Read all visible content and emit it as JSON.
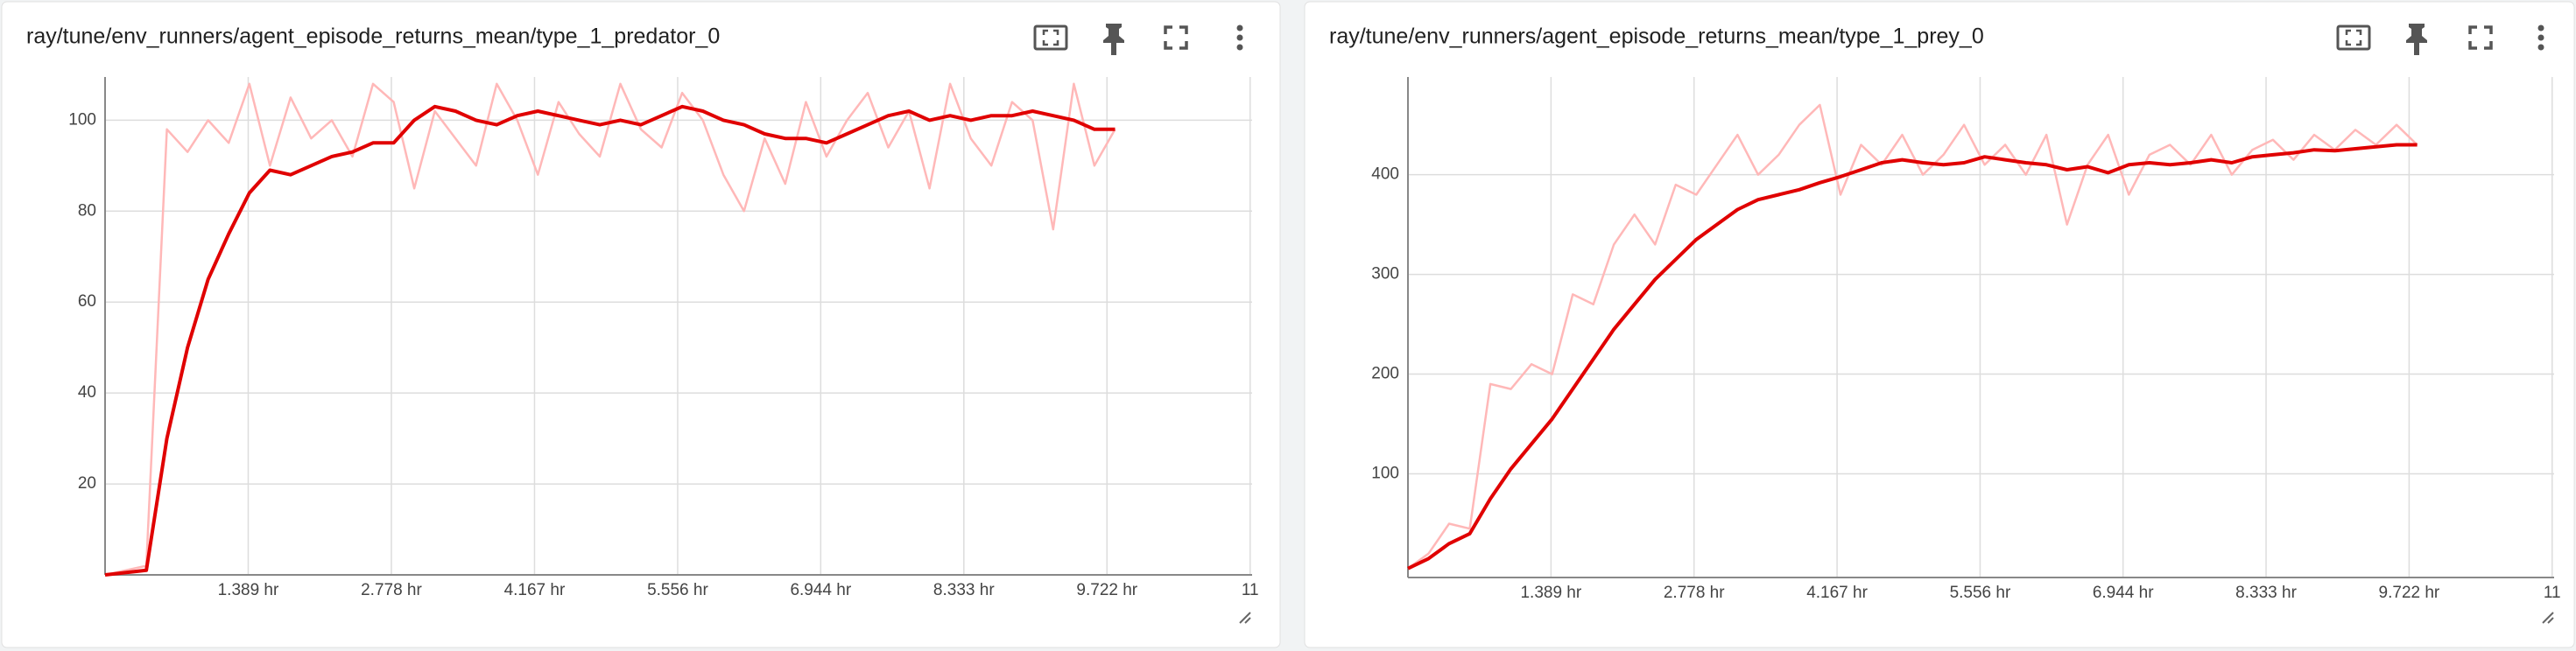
{
  "chart_data": [
    {
      "type": "line",
      "title": "ray/tune/env_runners/agent_episode_returns_mean/type_1_predator_0",
      "x": [
        0,
        0.2,
        0.4,
        0.6,
        0.8,
        1.0,
        1.2,
        1.4,
        1.6,
        1.8,
        2.0,
        2.2,
        2.4,
        2.6,
        2.8,
        3.0,
        3.2,
        3.4,
        3.6,
        3.8,
        4.0,
        4.2,
        4.4,
        4.6,
        4.8,
        5.0,
        5.2,
        5.4,
        5.6,
        5.8,
        6.0,
        6.2,
        6.4,
        6.6,
        6.8,
        7.0,
        7.2,
        7.4,
        7.6,
        7.8,
        8.0,
        8.2,
        8.4,
        8.6,
        8.8,
        9.0,
        9.2,
        9.4,
        9.6,
        9.8
      ],
      "series": [
        {
          "color": "#ffb8b8",
          "values": [
            0,
            1,
            2,
            98,
            93,
            100,
            95,
            108,
            90,
            105,
            96,
            100,
            92,
            108,
            104,
            85,
            102,
            96,
            90,
            108,
            100,
            88,
            104,
            97,
            92,
            108,
            98,
            94,
            106,
            100,
            88,
            80,
            96,
            86,
            104,
            92,
            100,
            106,
            94,
            102,
            85,
            108,
            96,
            90,
            104,
            100,
            76,
            108,
            90,
            98
          ]
        },
        {
          "color": "#e00000",
          "values": [
            0,
            0.5,
            1,
            30,
            50,
            65,
            75,
            84,
            89,
            88,
            90,
            92,
            93,
            95,
            95,
            100,
            103,
            102,
            100,
            99,
            101,
            102,
            101,
            100,
            99,
            100,
            99,
            101,
            103,
            102,
            100,
            99,
            97,
            96,
            96,
            95,
            97,
            99,
            101,
            102,
            100,
            101,
            100,
            101,
            101,
            102,
            101,
            100,
            98,
            98
          ]
        }
      ],
      "xlim": [
        0,
        11.13
      ],
      "ylim": [
        0,
        109.5
      ],
      "xticks": [
        {
          "value": 1.389,
          "label": "1.389 hr"
        },
        {
          "value": 2.778,
          "label": "2.778 hr"
        },
        {
          "value": 4.167,
          "label": "4.167 hr"
        },
        {
          "value": 5.556,
          "label": "5.556 hr"
        },
        {
          "value": 6.944,
          "label": "6.944 hr"
        },
        {
          "value": 8.333,
          "label": "8.333 hr"
        },
        {
          "value": 9.722,
          "label": "9.722 hr"
        },
        {
          "value": 11.111,
          "label": "11"
        }
      ],
      "yticks": [
        20,
        40,
        60,
        80,
        100
      ],
      "grid": true
    },
    {
      "type": "line",
      "title": "ray/tune/env_runners/agent_episode_returns_mean/type_1_prey_0",
      "x": [
        0,
        0.2,
        0.4,
        0.6,
        0.8,
        1.0,
        1.2,
        1.4,
        1.6,
        1.8,
        2.0,
        2.2,
        2.4,
        2.6,
        2.8,
        3.0,
        3.2,
        3.4,
        3.6,
        3.8,
        4.0,
        4.2,
        4.4,
        4.6,
        4.8,
        5.0,
        5.2,
        5.4,
        5.6,
        5.8,
        6.0,
        6.2,
        6.4,
        6.6,
        6.8,
        7.0,
        7.2,
        7.4,
        7.6,
        7.8,
        8.0,
        8.2,
        8.4,
        8.6,
        8.8,
        9.0,
        9.2,
        9.4,
        9.6,
        9.8
      ],
      "series": [
        {
          "color": "#ffb8b8",
          "values": [
            5,
            20,
            50,
            45,
            190,
            185,
            210,
            200,
            280,
            270,
            330,
            360,
            330,
            390,
            380,
            410,
            440,
            400,
            420,
            450,
            470,
            380,
            430,
            410,
            440,
            400,
            420,
            450,
            410,
            430,
            400,
            440,
            350,
            410,
            440,
            380,
            420,
            430,
            410,
            440,
            400,
            425,
            435,
            415,
            440,
            425,
            445,
            430,
            450,
            430
          ]
        },
        {
          "color": "#e00000",
          "values": [
            5,
            15,
            30,
            40,
            75,
            105,
            130,
            155,
            185,
            215,
            245,
            270,
            295,
            315,
            335,
            350,
            365,
            375,
            380,
            385,
            392,
            398,
            405,
            412,
            415,
            412,
            410,
            412,
            418,
            415,
            412,
            410,
            405,
            408,
            402,
            410,
            412,
            410,
            412,
            415,
            412,
            418,
            420,
            422,
            425,
            424,
            426,
            428,
            430,
            430
          ]
        }
      ],
      "xlim": [
        0,
        11.13
      ],
      "ylim": [
        -4,
        498
      ],
      "xticks": [
        {
          "value": 1.389,
          "label": "1.389 hr"
        },
        {
          "value": 2.778,
          "label": "2.778 hr"
        },
        {
          "value": 4.167,
          "label": "4.167 hr"
        },
        {
          "value": 5.556,
          "label": "5.556 hr"
        },
        {
          "value": 6.944,
          "label": "6.944 hr"
        },
        {
          "value": 8.333,
          "label": "8.333 hr"
        },
        {
          "value": 9.722,
          "label": "9.722 hr"
        },
        {
          "value": 11.111,
          "label": "11"
        }
      ],
      "yticks": [
        100,
        200,
        300,
        400
      ],
      "grid": true
    }
  ]
}
